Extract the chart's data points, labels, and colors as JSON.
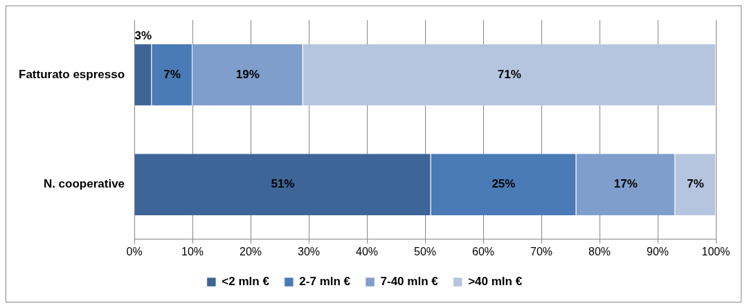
{
  "chart_data": {
    "type": "bar",
    "orientation": "horizontal",
    "stacked": true,
    "categories": [
      "Fatturato espresso",
      "N. cooperative"
    ],
    "series": [
      {
        "name": "<2 mln €",
        "color": "#3d6597",
        "values": [
          3,
          51
        ],
        "value_labels": [
          "3%",
          "51%"
        ]
      },
      {
        "name": "2-7 mln €",
        "color": "#4a7bb6",
        "values": [
          7,
          25
        ],
        "value_labels": [
          "7%",
          "25%"
        ]
      },
      {
        "name": "7-40 mln €",
        "color": "#7f9ecb",
        "values": [
          19,
          17
        ],
        "value_labels": [
          "19%",
          "17%"
        ]
      },
      {
        "name": ">40 mln €",
        "color": "#b6c5df",
        "values": [
          71,
          7
        ],
        "value_labels": [
          "71%",
          "7%"
        ]
      }
    ],
    "xlim": [
      0,
      100
    ],
    "xticks": [
      {
        "value": 0,
        "label": "0%"
      },
      {
        "value": 10,
        "label": "10%"
      },
      {
        "value": 20,
        "label": "20%"
      },
      {
        "value": 30,
        "label": "30%"
      },
      {
        "value": 40,
        "label": "40%"
      },
      {
        "value": 50,
        "label": "50%"
      },
      {
        "value": 60,
        "label": "60%"
      },
      {
        "value": 70,
        "label": "70%"
      },
      {
        "value": 80,
        "label": "80%"
      },
      {
        "value": 90,
        "label": "90%"
      },
      {
        "value": 100,
        "label": "100%"
      }
    ],
    "grid": "x",
    "legend": "bottom"
  }
}
